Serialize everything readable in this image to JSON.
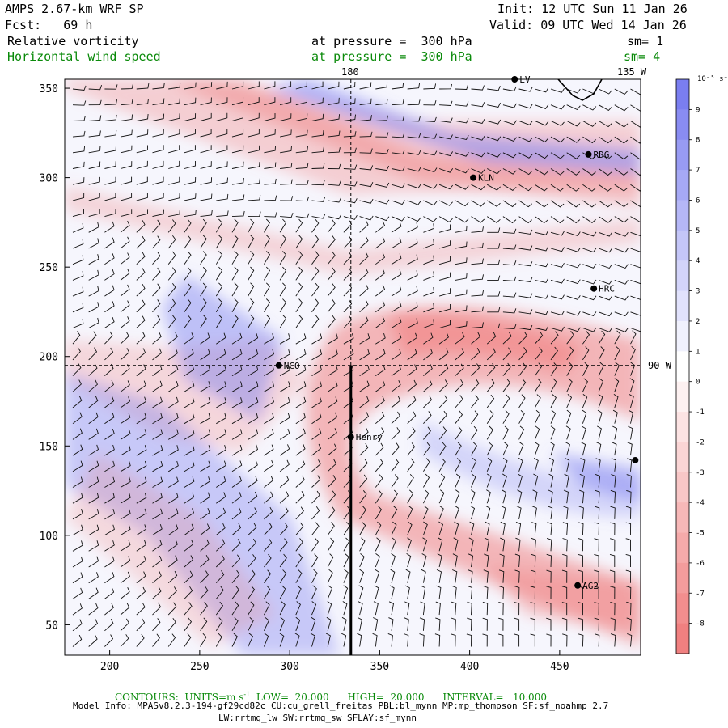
{
  "header": {
    "model": "AMPS 2.67-km WRF SP",
    "fcst": "Fcst:   69 h",
    "init": "Init: 12 UTC Sun 11 Jan 26",
    "valid": "Valid: 09 UTC Wed 14 Jan 26",
    "field1": {
      "name": "Relative vorticity",
      "level": "at pressure =  300 hPa",
      "sm": "sm= 1",
      "color": "#000000"
    },
    "field2": {
      "name": "Horizontal wind speed",
      "level": "at pressure =  300 hPa",
      "sm": "sm= 4",
      "color": "#0a8a0a"
    }
  },
  "map": {
    "x_ticks": [
      "200",
      "250",
      "300",
      "350",
      "400",
      "450"
    ],
    "y_ticks": [
      "350",
      "300",
      "250",
      "200",
      "150",
      "100",
      "50"
    ],
    "x_range": [
      175,
      495
    ],
    "y_range": [
      33,
      355
    ],
    "meridian_labels": {
      "lon180": "180",
      "lon135w": "135 W",
      "lon90w": "90 W"
    },
    "stations": [
      {
        "name": "LV",
        "x": 425,
        "y": 355
      },
      {
        "name": "RDG",
        "x": 466,
        "y": 313
      },
      {
        "name": "KLN",
        "x": 402,
        "y": 300
      },
      {
        "name": "HRC",
        "x": 469,
        "y": 238
      },
      {
        "name": "NCO",
        "x": 294,
        "y": 195
      },
      {
        "name": "Henry",
        "x": 334,
        "y": 155
      },
      {
        "name": "AG2",
        "x": 460,
        "y": 72
      },
      {
        "name": "",
        "x": 492,
        "y": 142
      }
    ],
    "transect": {
      "x": 334,
      "y_from": 33,
      "y_to": 195
    }
  },
  "colorbar": {
    "units": "10⁻⁵ s⁻¹",
    "labels": [
      "9",
      "8",
      "7",
      "6",
      "5",
      "4",
      "3",
      "2",
      "1",
      "0",
      "-1",
      "-2",
      "-3",
      "-4",
      "-5",
      "-6",
      "-7",
      "-8"
    ],
    "positive_color": "#7a7ef0",
    "negative_color": "#f08080"
  },
  "footer": {
    "contours_label": "CONTOURS:",
    "units_label": "UNITS=m s",
    "units_exp": "-1",
    "low": "LOW=  20.000",
    "high": "HIGH=  20.000",
    "interval": "INTERVAL=   10.000",
    "model_info": "Model Info: MPASv8.2.3-194-gf29cd82c CU:cu_grell_freitas PBL:bl_mynn MP:mp_thompson SF:sf_noahmp 2.7",
    "model_info2": "LW:rrtmg_lw SW:rrtmg_sw SFLAY:sf_mynn"
  }
}
